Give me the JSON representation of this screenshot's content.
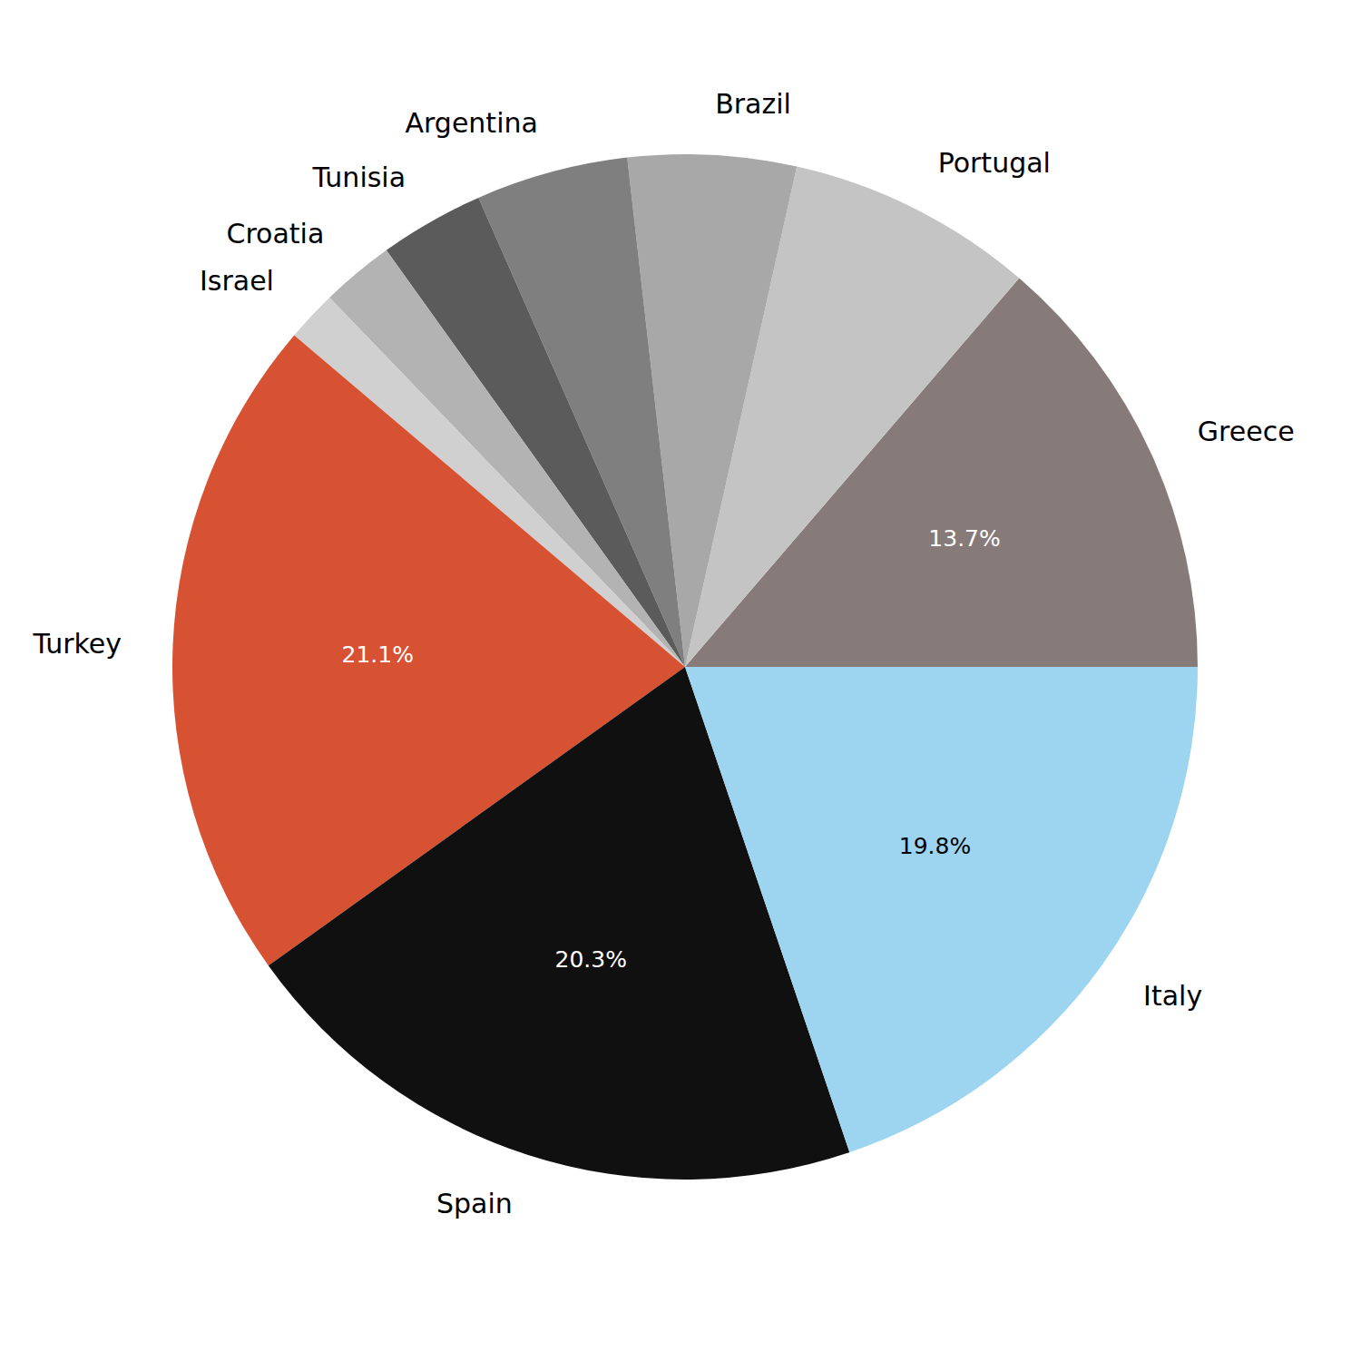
{
  "chart_data": {
    "type": "pie",
    "categories": [
      "Greece",
      "Portugal",
      "Brazil",
      "Argentina",
      "Tunisia",
      "Croatia",
      "Israel",
      "Turkey",
      "Spain",
      "Italy"
    ],
    "values": [
      13.7,
      7.8,
      5.3,
      4.8,
      3.3,
      2.3,
      1.6,
      21.1,
      20.3,
      19.8
    ],
    "value_labels": [
      "13.7%",
      null,
      null,
      null,
      null,
      null,
      null,
      "21.1%",
      "20.3%",
      "19.8%"
    ],
    "colors": [
      "#877b7a",
      "#c4c4c4",
      "#a8a8a8",
      "#7f7f7f",
      "#5b5b5b",
      "#b3b3b3",
      "#d0d0d0",
      "#d75232",
      "#101010",
      "#9dd5f0"
    ],
    "data_labels": true
  }
}
